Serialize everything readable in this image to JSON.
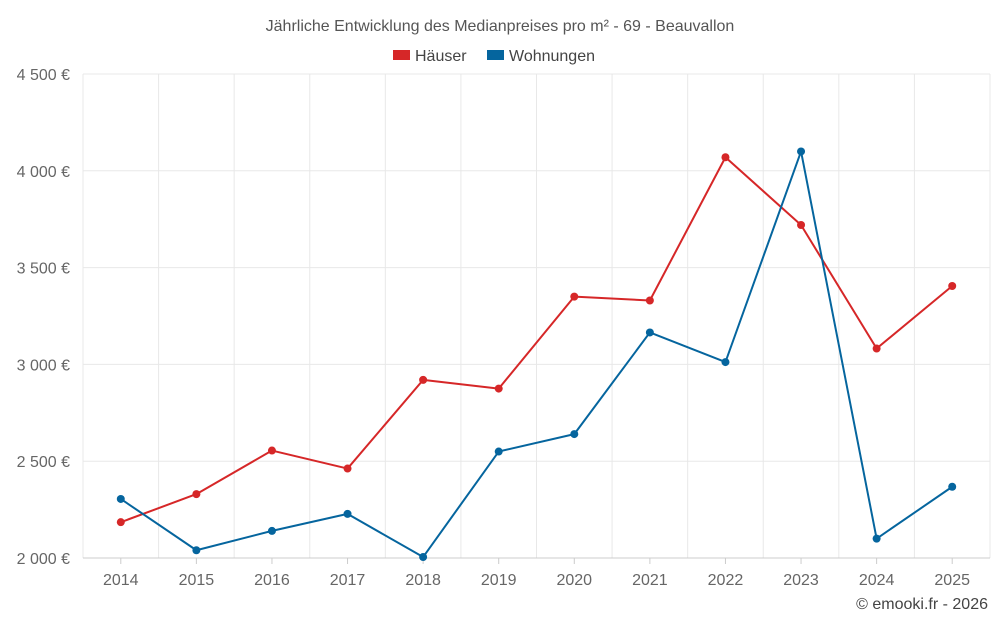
{
  "chart_data": {
    "type": "line",
    "title": "Jährliche Entwicklung des Medianpreises pro m² - 69 - Beauvallon",
    "categories": [
      "2014",
      "2015",
      "2016",
      "2017",
      "2018",
      "2019",
      "2020",
      "2021",
      "2022",
      "2023",
      "2024",
      "2025"
    ],
    "series": [
      {
        "name": "Häuser",
        "color": "#d62728",
        "values": [
          2185,
          2330,
          2555,
          2462,
          2920,
          2875,
          3350,
          3330,
          4070,
          3720,
          3082,
          3405
        ]
      },
      {
        "name": "Wohnungen",
        "color": "#05659e",
        "values": [
          2305,
          2040,
          2140,
          2228,
          2005,
          2550,
          2640,
          3165,
          3012,
          4100,
          2100,
          2368
        ]
      }
    ],
    "ylim": [
      2000,
      4500
    ],
    "yticks": [
      2000,
      2500,
      3000,
      3500,
      4000,
      4500
    ],
    "ytick_labels": [
      "2 000 €",
      "2 500 €",
      "3 000 €",
      "3 500 €",
      "4 000 €",
      "4 500 €"
    ],
    "xlabel": "",
    "ylabel": "",
    "legend": "top-center",
    "grid": true
  },
  "credit": "© emooki.fr - 2026"
}
